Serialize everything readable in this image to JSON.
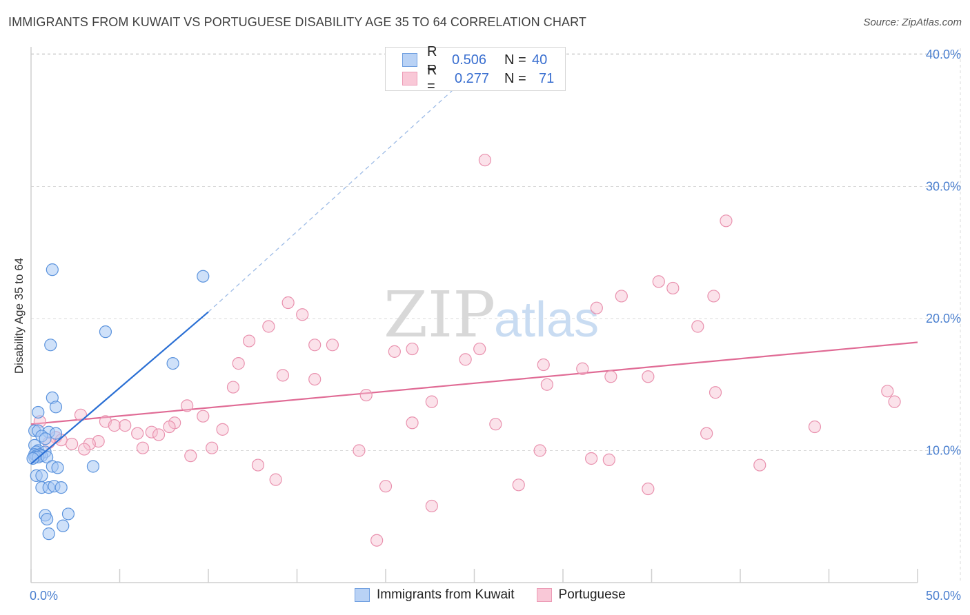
{
  "title": "IMMIGRANTS FROM KUWAIT VS PORTUGUESE DISABILITY AGE 35 TO 64 CORRELATION CHART",
  "source": "Source: ZipAtlas.com",
  "watermark": {
    "zip": "ZIP",
    "atlas": "atlas"
  },
  "colors": {
    "blue_fill": "#a8c8f4",
    "blue_stroke": "#5b93dd",
    "blue_line": "#2a6fd4",
    "pink_fill": "#f7bfd0",
    "pink_stroke": "#e991ae",
    "pink_line": "#e06b95",
    "grid": "#d9d9d9",
    "tick_text": "#4a7fcf"
  },
  "legend": {
    "rows": [
      {
        "r_label": "R =",
        "r_value": "0.506",
        "n_label": "N =",
        "n_value": "40"
      },
      {
        "r_label": "R =",
        "r_value": "0.277",
        "n_label": "N =",
        "n_value": "71"
      }
    ]
  },
  "bottom_legend": [
    "Immigrants from Kuwait",
    "Portuguese"
  ],
  "chart_data": {
    "type": "scatter",
    "ylabel": "Disability Age 35 to 64",
    "xlim": [
      0,
      50
    ],
    "ylim": [
      0,
      42
    ],
    "x_tick_labels": [
      "0.0%",
      "50.0%"
    ],
    "y_ticks": [
      {
        "value": 10,
        "label": "10.0%"
      },
      {
        "value": 20,
        "label": "20.0%"
      },
      {
        "value": 30,
        "label": "30.0%"
      },
      {
        "value": 40,
        "label": "40.0%"
      }
    ],
    "series": [
      {
        "name": "Immigrants from Kuwait",
        "color": "blue",
        "points": [
          [
            1.2,
            23.7
          ],
          [
            9.7,
            23.2
          ],
          [
            1.1,
            18.0
          ],
          [
            4.2,
            19.0
          ],
          [
            8.0,
            16.6
          ],
          [
            1.2,
            14.0
          ],
          [
            1.4,
            13.3
          ],
          [
            0.4,
            12.9
          ],
          [
            0.2,
            11.5
          ],
          [
            0.4,
            11.5
          ],
          [
            1.0,
            11.4
          ],
          [
            1.4,
            11.3
          ],
          [
            0.6,
            11.1
          ],
          [
            0.8,
            10.9
          ],
          [
            0.2,
            10.4
          ],
          [
            0.4,
            10.0
          ],
          [
            0.3,
            9.9
          ],
          [
            0.8,
            9.9
          ],
          [
            0.2,
            9.7
          ],
          [
            0.5,
            9.7
          ],
          [
            0.3,
            9.6
          ],
          [
            0.6,
            9.6
          ],
          [
            0.2,
            9.5
          ],
          [
            0.4,
            9.5
          ],
          [
            0.9,
            9.5
          ],
          [
            0.1,
            9.4
          ],
          [
            1.2,
            8.8
          ],
          [
            1.5,
            8.7
          ],
          [
            3.5,
            8.8
          ],
          [
            0.3,
            8.1
          ],
          [
            0.6,
            8.1
          ],
          [
            0.6,
            7.2
          ],
          [
            1.0,
            7.2
          ],
          [
            1.3,
            7.3
          ],
          [
            1.7,
            7.2
          ],
          [
            0.8,
            5.1
          ],
          [
            2.1,
            5.2
          ],
          [
            0.9,
            4.8
          ],
          [
            1.8,
            4.3
          ],
          [
            1.0,
            3.7
          ]
        ],
        "trend": {
          "x1": 0,
          "y1": 9.0,
          "x2": 10.0,
          "y2": 20.5,
          "dash_x2": 26.0,
          "dash_y2": 40.0
        }
      },
      {
        "name": "Portuguese",
        "color": "pink",
        "points": [
          [
            25.6,
            32.0
          ],
          [
            39.2,
            27.4
          ],
          [
            35.4,
            22.8
          ],
          [
            36.2,
            22.3
          ],
          [
            33.3,
            21.7
          ],
          [
            38.5,
            21.7
          ],
          [
            14.5,
            21.2
          ],
          [
            15.3,
            20.3
          ],
          [
            31.9,
            20.8
          ],
          [
            13.4,
            19.4
          ],
          [
            37.6,
            19.4
          ],
          [
            12.3,
            18.3
          ],
          [
            16.0,
            18.0
          ],
          [
            17.0,
            18.0
          ],
          [
            20.5,
            17.5
          ],
          [
            21.5,
            17.7
          ],
          [
            25.3,
            17.7
          ],
          [
            24.5,
            16.9
          ],
          [
            11.7,
            16.6
          ],
          [
            28.9,
            16.5
          ],
          [
            31.1,
            16.2
          ],
          [
            32.7,
            15.6
          ],
          [
            34.8,
            15.6
          ],
          [
            14.2,
            15.7
          ],
          [
            16.0,
            15.4
          ],
          [
            29.1,
            15.0
          ],
          [
            11.4,
            14.8
          ],
          [
            18.9,
            14.2
          ],
          [
            38.6,
            14.4
          ],
          [
            48.3,
            14.5
          ],
          [
            48.7,
            13.7
          ],
          [
            22.6,
            13.7
          ],
          [
            8.8,
            13.4
          ],
          [
            2.8,
            12.7
          ],
          [
            9.7,
            12.6
          ],
          [
            4.2,
            12.2
          ],
          [
            8.1,
            12.1
          ],
          [
            4.7,
            11.9
          ],
          [
            5.3,
            11.9
          ],
          [
            21.5,
            12.1
          ],
          [
            26.2,
            12.0
          ],
          [
            7.8,
            11.8
          ],
          [
            10.8,
            11.6
          ],
          [
            6.8,
            11.4
          ],
          [
            44.2,
            11.8
          ],
          [
            6.0,
            11.3
          ],
          [
            7.2,
            11.2
          ],
          [
            38.1,
            11.3
          ],
          [
            3.8,
            10.7
          ],
          [
            2.3,
            10.5
          ],
          [
            3.3,
            10.5
          ],
          [
            6.3,
            10.2
          ],
          [
            10.2,
            10.2
          ],
          [
            3.0,
            10.1
          ],
          [
            18.5,
            10.0
          ],
          [
            28.7,
            10.0
          ],
          [
            9.0,
            9.6
          ],
          [
            31.6,
            9.4
          ],
          [
            32.6,
            9.3
          ],
          [
            12.8,
            8.9
          ],
          [
            41.1,
            8.9
          ],
          [
            13.8,
            7.8
          ],
          [
            20.0,
            7.3
          ],
          [
            27.5,
            7.4
          ],
          [
            34.8,
            7.1
          ],
          [
            22.6,
            5.8
          ],
          [
            19.5,
            3.2
          ],
          [
            0.5,
            12.2
          ],
          [
            1.4,
            11.0
          ],
          [
            1.7,
            10.8
          ],
          [
            1.0,
            10.6
          ]
        ],
        "trend": {
          "x1": 0,
          "y1": 12.0,
          "x2": 50,
          "y2": 18.2
        }
      }
    ]
  }
}
